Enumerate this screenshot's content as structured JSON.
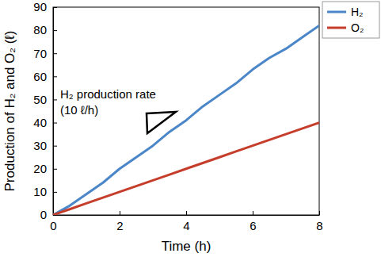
{
  "chart_data": {
    "type": "line",
    "x_label": "Time (h)",
    "y_label": "Production of H₂ and O₂ (ℓ)",
    "annotations": [
      "H₂ production rate",
      "(10 ℓ/h)"
    ],
    "x": [
      0,
      0.5,
      1,
      1.5,
      2,
      2.5,
      3,
      3.5,
      4,
      4.5,
      5,
      5.5,
      6,
      6.5,
      7,
      7.5,
      8
    ],
    "series": [
      {
        "name": "H₂",
        "color": "#4a86c8",
        "values": [
          0,
          4,
          9,
          14,
          20,
          25,
          30,
          36,
          41,
          47,
          52,
          57,
          63,
          68,
          72,
          77,
          82
        ]
      },
      {
        "name": "O₂",
        "color": "#c53d2b",
        "values": [
          0,
          2.5,
          5,
          7.5,
          10,
          12.5,
          15,
          17.5,
          20,
          22.5,
          25,
          27.5,
          30,
          32.5,
          35,
          37.5,
          40
        ]
      }
    ],
    "xlim": [
      0,
      8
    ],
    "xticks": [
      0,
      2,
      4,
      6,
      8
    ],
    "ylim": [
      0,
      90
    ],
    "yticks": [
      0,
      10,
      20,
      30,
      40,
      50,
      60,
      70,
      80,
      90
    ],
    "grid": false,
    "legend": "right"
  }
}
